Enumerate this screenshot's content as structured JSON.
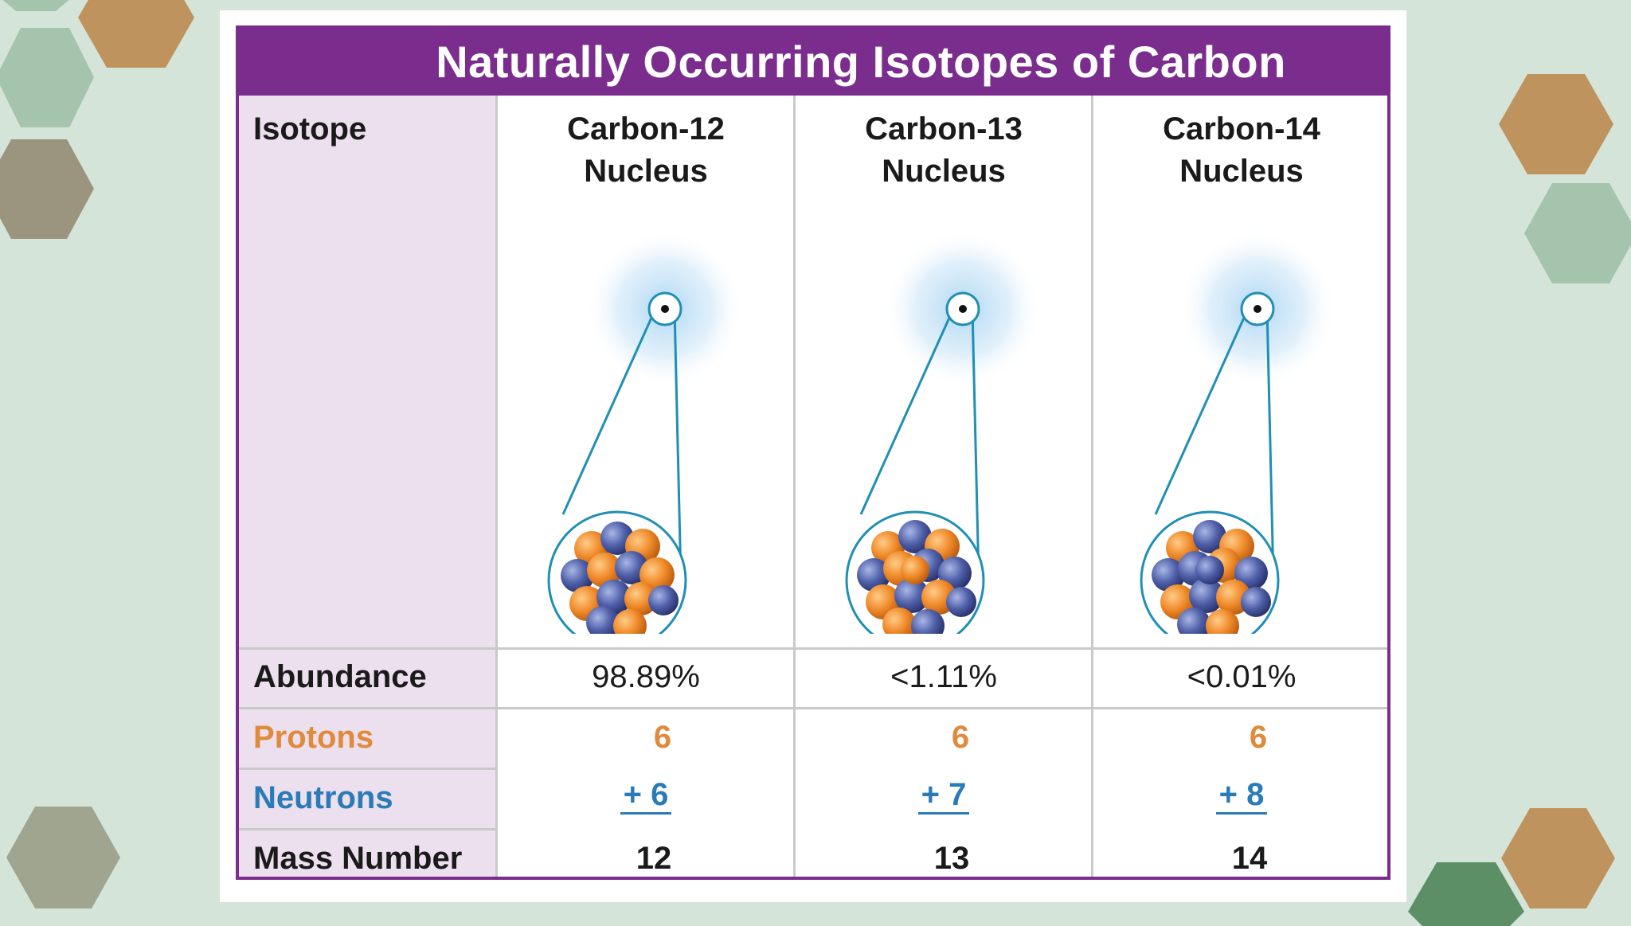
{
  "colors": {
    "background": "#d5e4d8",
    "title_bar": "#7b2d8e",
    "label_column": "#ede0ee",
    "protons": "#e08a3c",
    "neutrons": "#2a7bb8",
    "hex_tan": "#bf935d",
    "hex_sage": "#a5c4ad",
    "hex_olive": "#9b9580",
    "hex_gray_green": "#9fa58f",
    "hex_dark_green": "#5c8f66"
  },
  "table": {
    "title": "Naturally Occurring Isotopes of Carbon",
    "labels": {
      "isotope": "Isotope",
      "abundance": "Abundance",
      "protons": "Protons",
      "neutrons": "Neutrons",
      "mass_number": "Mass Number"
    },
    "isotopes": [
      {
        "name": "Carbon-12",
        "subtitle": "Nucleus",
        "abundance": "98.89%",
        "protons": "6",
        "neutrons": "+ 6",
        "mass_number": "12",
        "icon": "carbon-nucleus-illustration"
      },
      {
        "name": "Carbon-13",
        "subtitle": "Nucleus",
        "abundance": "<1.11%",
        "protons": "6",
        "neutrons": "+ 7",
        "mass_number": "13",
        "icon": "carbon-nucleus-illustration"
      },
      {
        "name": "Carbon-14",
        "subtitle": "Nucleus",
        "abundance": "<0.01%",
        "protons": "6",
        "neutrons": "+ 8",
        "mass_number": "14",
        "icon": "carbon-nucleus-illustration"
      }
    ]
  }
}
